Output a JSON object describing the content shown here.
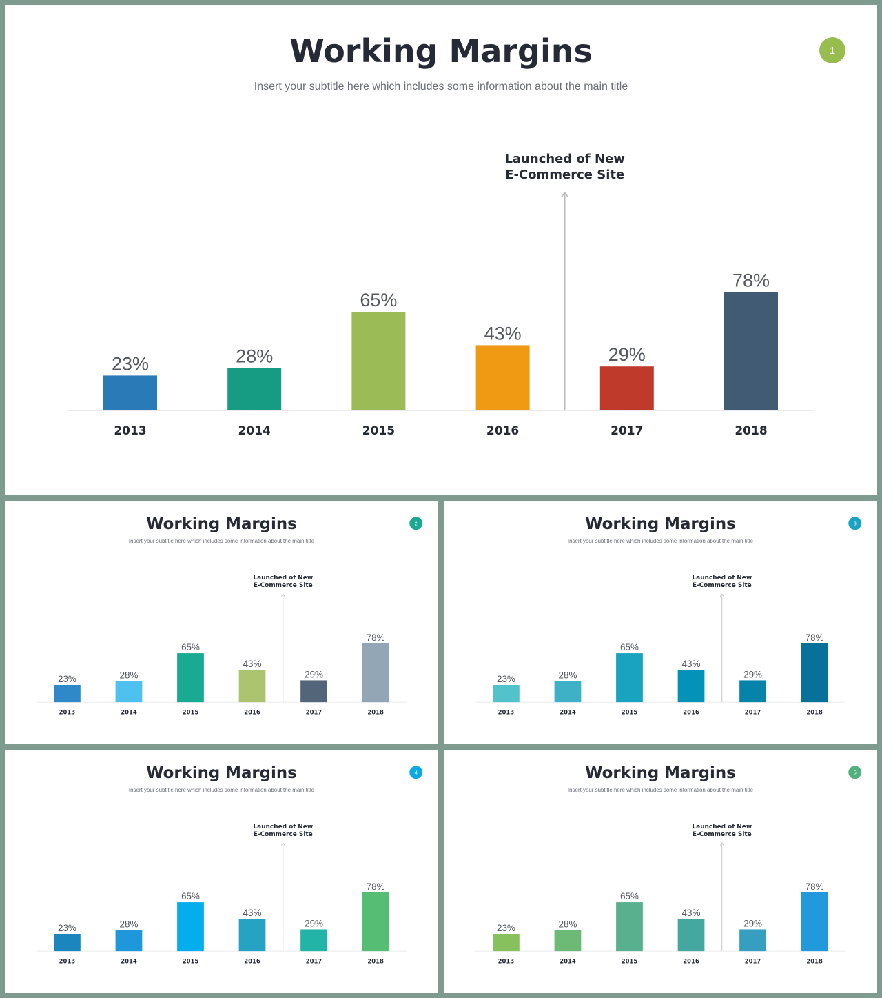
{
  "slides": [
    {
      "number": "1",
      "title": "Working Margins",
      "subtitle": "Insert your subtitle here which includes some information about the main title",
      "badge_color": "#97bd4f",
      "annotation": [
        "Launched of New",
        "E-Commerce Site"
      ],
      "chart_data": {
        "type": "bar",
        "categories": [
          "2013",
          "2014",
          "2015",
          "2016",
          "2017",
          "2018"
        ],
        "values": [
          23,
          28,
          65,
          43,
          29,
          78
        ],
        "value_labels": [
          "23%",
          "28%",
          "65%",
          "43%",
          "29%",
          "78%"
        ],
        "colors": [
          "#2a7ab8",
          "#169c82",
          "#9abb56",
          "#ef9a12",
          "#c03a2b",
          "#425b74"
        ],
        "ylim": [
          0,
          100
        ],
        "annotation_between": [
          "2016",
          "2017"
        ]
      }
    },
    {
      "number": "2",
      "title": "Working Margins",
      "subtitle": "Insert your subtitle here which includes some information about the main title",
      "badge_color": "#1aa892",
      "annotation": [
        "Launched of New",
        "E-Commerce Site"
      ],
      "chart_data": {
        "type": "bar",
        "categories": [
          "2013",
          "2014",
          "2015",
          "2016",
          "2017",
          "2018"
        ],
        "values": [
          23,
          28,
          65,
          43,
          29,
          78
        ],
        "value_labels": [
          "23%",
          "28%",
          "65%",
          "43%",
          "29%",
          "78%"
        ],
        "colors": [
          "#2f88c8",
          "#4fc1ef",
          "#19ab92",
          "#acc470",
          "#526579",
          "#92a6b5"
        ],
        "ylim": [
          0,
          100
        ],
        "annotation_between": [
          "2016",
          "2017"
        ]
      }
    },
    {
      "number": "3",
      "title": "Working Margins",
      "subtitle": "Insert your subtitle here which includes some information about the main title",
      "badge_color": "#1aa3c2",
      "annotation": [
        "Launched of New",
        "E-Commerce Site"
      ],
      "chart_data": {
        "type": "bar",
        "categories": [
          "2013",
          "2014",
          "2015",
          "2016",
          "2017",
          "2018"
        ],
        "values": [
          23,
          28,
          65,
          43,
          29,
          78
        ],
        "value_labels": [
          "23%",
          "28%",
          "65%",
          "43%",
          "29%",
          "78%"
        ],
        "colors": [
          "#53c3cb",
          "#3fb1c7",
          "#1aa3c1",
          "#0592b8",
          "#0583a8",
          "#07719a"
        ],
        "ylim": [
          0,
          100
        ],
        "annotation_between": [
          "2016",
          "2017"
        ]
      }
    },
    {
      "number": "4",
      "title": "Working Margins",
      "subtitle": "Insert your subtitle here which includes some information about the main title",
      "badge_color": "#0aa8e6",
      "annotation": [
        "Launched of New",
        "E-Commerce Site"
      ],
      "chart_data": {
        "type": "bar",
        "categories": [
          "2013",
          "2014",
          "2015",
          "2016",
          "2017",
          "2018"
        ],
        "values": [
          23,
          28,
          65,
          43,
          29,
          78
        ],
        "value_labels": [
          "23%",
          "28%",
          "65%",
          "43%",
          "29%",
          "78%"
        ],
        "colors": [
          "#1b85bd",
          "#1f97db",
          "#04aeec",
          "#26a3c2",
          "#22b5a7",
          "#56bd74"
        ],
        "ylim": [
          0,
          100
        ],
        "annotation_between": [
          "2016",
          "2017"
        ]
      }
    },
    {
      "number": "5",
      "title": "Working Margins",
      "subtitle": "Insert your subtitle here which includes some information about the main title",
      "badge_color": "#51b27d",
      "annotation": [
        "Launched of New",
        "E-Commerce Site"
      ],
      "chart_data": {
        "type": "bar",
        "categories": [
          "2013",
          "2014",
          "2015",
          "2016",
          "2017",
          "2018"
        ],
        "values": [
          23,
          28,
          65,
          43,
          29,
          78
        ],
        "value_labels": [
          "23%",
          "28%",
          "65%",
          "43%",
          "29%",
          "78%"
        ],
        "colors": [
          "#86c15d",
          "#6cba75",
          "#58b08e",
          "#44a8a0",
          "#369fc0",
          "#2199da"
        ],
        "ylim": [
          0,
          100
        ],
        "annotation_between": [
          "2016",
          "2017"
        ]
      }
    }
  ]
}
